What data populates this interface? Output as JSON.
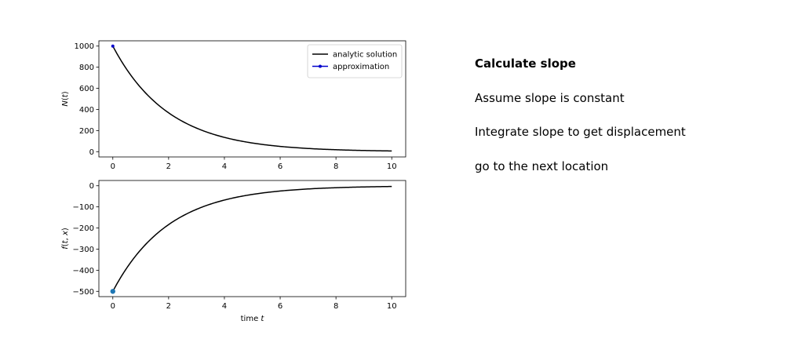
{
  "chart_data": [
    {
      "type": "line",
      "ylabel": "N(t)",
      "xlabel": "",
      "xlim": [
        -0.5,
        10.5
      ],
      "ylim": [
        -50,
        1050
      ],
      "xticks": [
        0,
        2,
        4,
        6,
        8,
        10
      ],
      "yticks": [
        0,
        200,
        400,
        600,
        800,
        1000
      ],
      "grid": false,
      "legend": "top-right",
      "series": [
        {
          "name": "analytic solution",
          "color": "#000000",
          "style": "line",
          "function": "exp-decay",
          "x_range": [
            0,
            10
          ],
          "y0": 1000,
          "rate": 0.5
        },
        {
          "name": "approximation",
          "color": "#0000cc",
          "style": "line-marker",
          "x": [
            0
          ],
          "y": [
            1000
          ]
        }
      ]
    },
    {
      "type": "line",
      "ylabel": "f(t, x)",
      "xlabel": "time t",
      "xlim": [
        -0.5,
        10.5
      ],
      "ylim": [
        -525,
        25
      ],
      "xticks": [
        0,
        2,
        4,
        6,
        8,
        10
      ],
      "yticks": [
        0,
        -100,
        -200,
        -300,
        -400,
        -500
      ],
      "grid": false,
      "series": [
        {
          "color": "#000000",
          "style": "line",
          "function": "exp-decay",
          "x_range": [
            0,
            10
          ],
          "y0": -500,
          "rate": 0.5
        },
        {
          "color": "#1f77b4",
          "style": "marker",
          "x": [
            0
          ],
          "y": [
            -500
          ]
        }
      ]
    }
  ],
  "steps": [
    {
      "text": "Calculate slope",
      "bold": true
    },
    {
      "text": "Assume slope is constant",
      "bold": false
    },
    {
      "text": "Integrate slope to get displacement",
      "bold": false
    },
    {
      "text": "go to the next location",
      "bold": false
    }
  ]
}
